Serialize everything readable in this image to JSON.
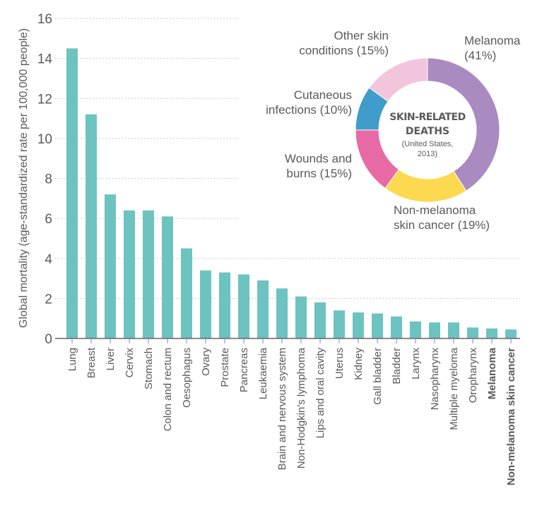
{
  "chart_data": [
    {
      "type": "bar",
      "ylabel": "Global mortality (age-standardized rate per 100,000 people)",
      "ylim": [
        0,
        16
      ],
      "yticks": [
        0,
        2,
        4,
        6,
        8,
        10,
        12,
        14,
        16
      ],
      "grid": true,
      "color": "#6cc3c0",
      "categories": [
        "Lung",
        "Breast",
        "Liver",
        "Cervix",
        "Stomach",
        "Colon and rectum",
        "Oesophagus",
        "Ovary",
        "Prostate",
        "Pancreas",
        "Leukaemia",
        "Brain and nervous system",
        "Non-Hodgkin's lymphoma",
        "Lips and oral cavity",
        "Uterus",
        "Kidney",
        "Gall bladder",
        "Bladder",
        "Larynx",
        "Nasopharynx",
        "Multiple myeloma",
        "Oropharynx",
        "Melanoma",
        "Non-melanoma skin cancer"
      ],
      "highlighted": [
        "Melanoma",
        "Non-melanoma skin cancer"
      ],
      "values": [
        14.5,
        11.2,
        7.2,
        6.4,
        6.4,
        6.1,
        4.5,
        3.4,
        3.3,
        3.2,
        2.9,
        2.5,
        2.1,
        1.8,
        1.4,
        1.3,
        1.25,
        1.1,
        0.85,
        0.8,
        0.8,
        0.55,
        0.5,
        0.45
      ]
    },
    {
      "type": "pie",
      "title": "SKIN-RELATED DEATHS",
      "subtitle": "(United States, 2013)",
      "slices": [
        {
          "label": "Melanoma (41%)",
          "value": 41,
          "color": "#a98bc2"
        },
        {
          "label": "Non-melanoma skin cancer (19%)",
          "value": 19,
          "color": "#fdd94f"
        },
        {
          "label": "Wounds and burns (15%)",
          "value": 15,
          "color": "#e86aa4"
        },
        {
          "label": "Cutaneous infections (10%)",
          "value": 10,
          "color": "#3f9ccb"
        },
        {
          "label": "Other skin conditions (15%)",
          "value": 15,
          "color": "#f2c5dd"
        }
      ]
    }
  ]
}
